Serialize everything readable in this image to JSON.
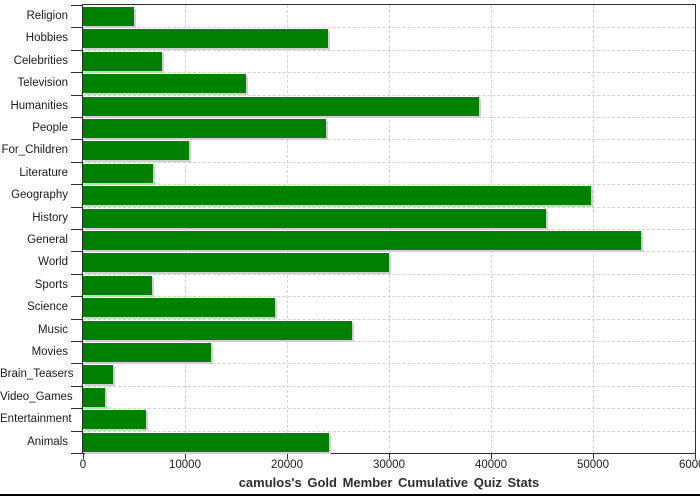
{
  "chart_data": {
    "type": "bar",
    "orientation": "horizontal",
    "title": "camulos's Gold Member Cumulative Quiz Stats",
    "categories": [
      "Religion",
      "Hobbies",
      "Celebrities",
      "Television",
      "Humanities",
      "People",
      "For_Children",
      "Literature",
      "Geography",
      "History",
      "General",
      "World",
      "Sports",
      "Science",
      "Music",
      "Movies",
      "Brain_Teasers",
      "Video_Games",
      "Entertainment",
      "Animals"
    ],
    "values": [
      5000,
      24000,
      7700,
      16000,
      38800,
      23800,
      10400,
      6900,
      49800,
      45400,
      54700,
      30000,
      6800,
      18800,
      26400,
      12500,
      2900,
      2200,
      6200,
      24100
    ],
    "x_ticks": [
      0,
      10000,
      20000,
      30000,
      40000,
      50000,
      60000
    ],
    "x_tick_labels": [
      "0",
      "10000",
      "20000",
      "30000",
      "40000",
      "50000",
      "60000"
    ],
    "xlim": [
      0,
      60000
    ],
    "xlabel": "",
    "ylabel": "",
    "grid": true,
    "legend": false,
    "colors": {
      "bar": "#008000",
      "bar_shadow": "#cfcfcf",
      "gridline": "#d2d2d2",
      "axis": "#2e2e2e",
      "tick_text": "#1a1a1a",
      "title_text": "#2e2e2e",
      "background": "#ffffff"
    }
  }
}
